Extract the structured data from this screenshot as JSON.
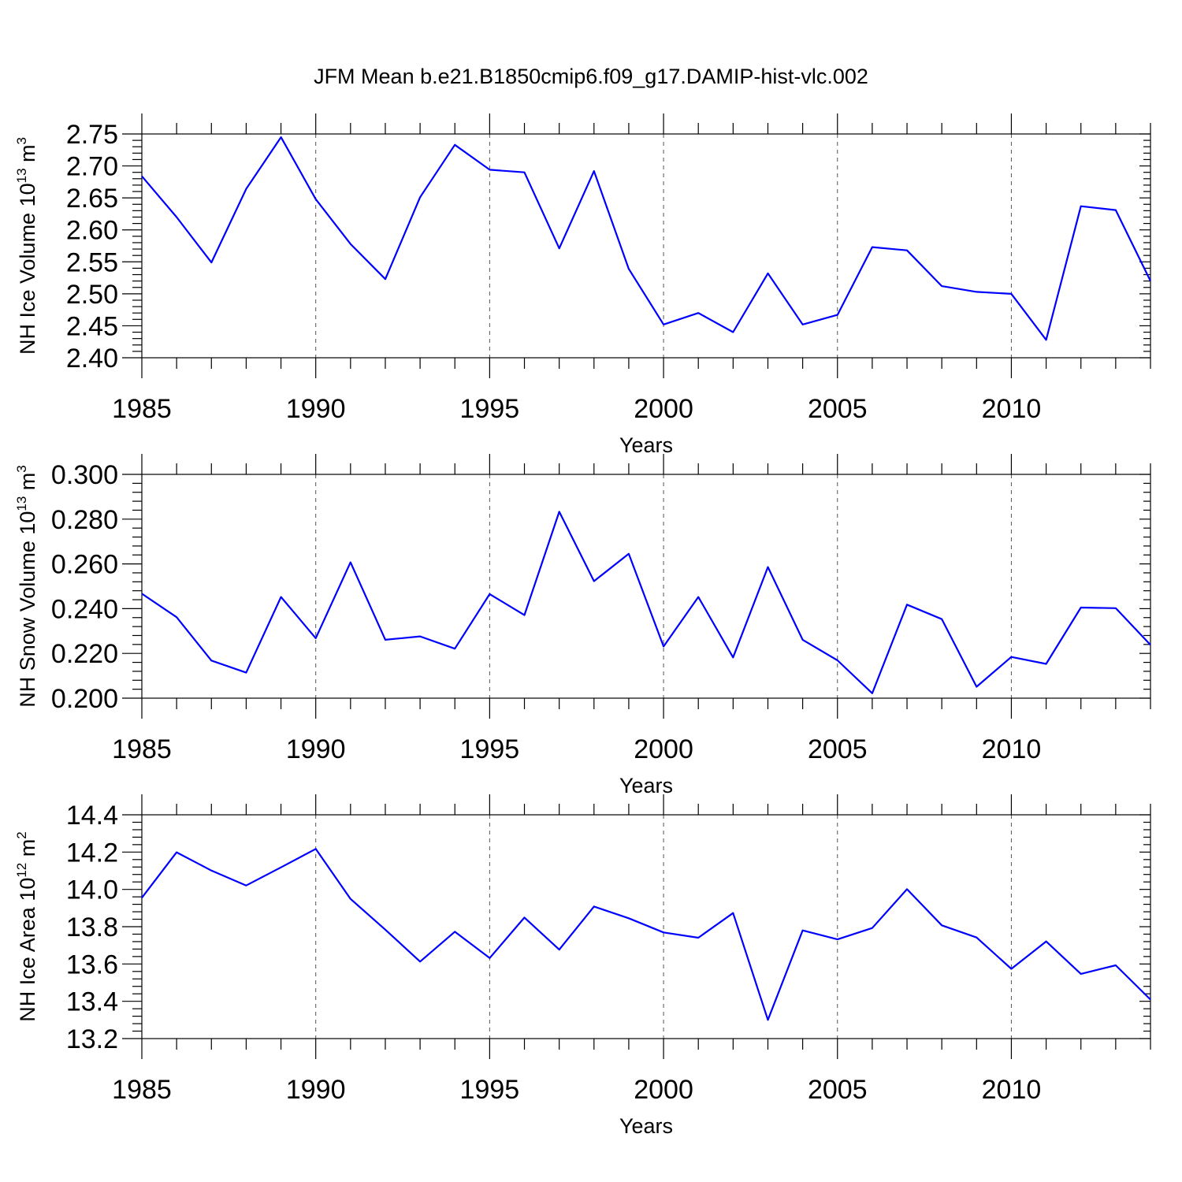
{
  "title": "JFM Mean b.e21.B1850cmip6.f09_g17.DAMIP-hist-vlc.002",
  "line_color": "#0000ff",
  "chart_data": [
    {
      "type": "line",
      "ylabel_main": "NH Ice Volume 10",
      "ylabel_exp": "13",
      "ylabel_unit": " m",
      "ylabel_unit_exp": "3",
      "xlabel": "Years",
      "xlim": [
        1985,
        2014
      ],
      "ylim": [
        2.4,
        2.75
      ],
      "yticks": [
        2.4,
        2.45,
        2.5,
        2.55,
        2.6,
        2.65,
        2.7,
        2.75
      ],
      "ytick_labels": [
        "2.40",
        "2.45",
        "2.50",
        "2.55",
        "2.60",
        "2.65",
        "2.70",
        "2.75"
      ],
      "xticks": [
        1985,
        1990,
        1995,
        2000,
        2005,
        2010
      ],
      "xtick_labels": [
        "1985",
        "1990",
        "1995",
        "2000",
        "2005",
        "2010"
      ],
      "grid_x": [
        1990,
        1995,
        2000,
        2005,
        2010
      ],
      "x": [
        1985,
        1986,
        1987,
        1988,
        1989,
        1990,
        1991,
        1992,
        1993,
        1994,
        1995,
        1996,
        1997,
        1998,
        1999,
        2000,
        2001,
        2002,
        2003,
        2004,
        2005,
        2006,
        2007,
        2008,
        2009,
        2010,
        2011,
        2012,
        2013,
        2014
      ],
      "y": [
        2.684,
        2.62,
        2.549,
        2.664,
        2.745,
        2.648,
        2.578,
        2.523,
        2.651,
        2.733,
        2.694,
        2.69,
        2.571,
        2.692,
        2.539,
        2.452,
        2.47,
        2.44,
        2.532,
        2.452,
        2.467,
        2.573,
        2.568,
        2.512,
        2.503,
        2.5,
        2.428,
        2.637,
        2.631,
        2.52
      ]
    },
    {
      "type": "line",
      "ylabel_main": "NH Snow Volume 10",
      "ylabel_exp": "13",
      "ylabel_unit": " m",
      "ylabel_unit_exp": "3",
      "xlabel": "Years",
      "xlim": [
        1985,
        2014
      ],
      "ylim": [
        0.2,
        0.3
      ],
      "yticks": [
        0.2,
        0.22,
        0.24,
        0.26,
        0.28,
        0.3
      ],
      "ytick_labels": [
        "0.200",
        "0.220",
        "0.240",
        "0.260",
        "0.280",
        "0.300"
      ],
      "xticks": [
        1985,
        1990,
        1995,
        2000,
        2005,
        2010
      ],
      "xtick_labels": [
        "1985",
        "1990",
        "1995",
        "2000",
        "2005",
        "2010"
      ],
      "grid_x": [
        1990,
        1995,
        2000,
        2005,
        2010
      ],
      "x": [
        1985,
        1986,
        1987,
        1988,
        1989,
        1990,
        1991,
        1992,
        1993,
        1994,
        1995,
        1996,
        1997,
        1998,
        1999,
        2000,
        2001,
        2002,
        2003,
        2004,
        2005,
        2006,
        2007,
        2008,
        2009,
        2010,
        2011,
        2012,
        2013,
        2014
      ],
      "y": [
        0.2467,
        0.2362,
        0.2168,
        0.2114,
        0.2452,
        0.2268,
        0.2607,
        0.2261,
        0.2276,
        0.2221,
        0.2465,
        0.2371,
        0.2833,
        0.2523,
        0.2645,
        0.2231,
        0.2452,
        0.2182,
        0.2586,
        0.2261,
        0.2169,
        0.2022,
        0.2418,
        0.2353,
        0.2051,
        0.2184,
        0.2153,
        0.2405,
        0.2402,
        0.2238
      ]
    },
    {
      "type": "line",
      "ylabel_main": "NH Ice Area 10",
      "ylabel_exp": "12",
      "ylabel_unit": " m",
      "ylabel_unit_exp": "2",
      "xlabel": "Years",
      "xlim": [
        1985,
        2014
      ],
      "ylim": [
        13.2,
        14.4
      ],
      "yticks": [
        13.2,
        13.4,
        13.6,
        13.8,
        14.0,
        14.2,
        14.4
      ],
      "ytick_labels": [
        "13.2",
        "13.4",
        "13.6",
        "13.8",
        "14.0",
        "14.2",
        "14.4"
      ],
      "xticks": [
        1985,
        1990,
        1995,
        2000,
        2005,
        2010
      ],
      "xtick_labels": [
        "1985",
        "1990",
        "1995",
        "2000",
        "2005",
        "2010"
      ],
      "grid_x": [
        1990,
        1995,
        2000,
        2005,
        2010
      ],
      "x": [
        1985,
        1986,
        1987,
        1988,
        1989,
        1990,
        1991,
        1992,
        1993,
        1994,
        1995,
        1996,
        1997,
        1998,
        1999,
        2000,
        2001,
        2002,
        2003,
        2004,
        2005,
        2006,
        2007,
        2008,
        2009,
        2010,
        2011,
        2012,
        2013,
        2014
      ],
      "y": [
        13.955,
        14.199,
        14.101,
        14.021,
        14.118,
        14.217,
        13.949,
        13.784,
        13.613,
        13.773,
        13.632,
        13.849,
        13.677,
        13.908,
        13.845,
        13.769,
        13.741,
        13.873,
        13.3,
        13.78,
        13.732,
        13.793,
        14.001,
        13.807,
        13.742,
        13.574,
        13.721,
        13.547,
        13.593,
        13.409
      ]
    }
  ]
}
